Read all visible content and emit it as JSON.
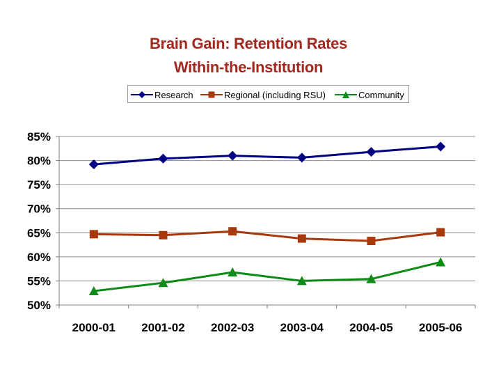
{
  "chart_data": {
    "type": "line",
    "title": [
      "Brain Gain:  Retention Rates",
      "Within-the-Institution"
    ],
    "categories": [
      "2000-01",
      "2001-02",
      "2002-03",
      "2003-04",
      "2004-05",
      "2005-06"
    ],
    "series": [
      {
        "name": "Research",
        "color": "#000080",
        "marker": "diamond",
        "values": [
          79.2,
          80.4,
          81.0,
          80.6,
          81.8,
          82.9
        ]
      },
      {
        "name": "Regional (including RSU)",
        "color": "#a8390c",
        "marker": "square",
        "values": [
          64.7,
          64.5,
          65.3,
          63.8,
          63.3,
          65.1
        ]
      },
      {
        "name": "Community",
        "color": "#0e8a16",
        "marker": "triangle",
        "values": [
          52.9,
          54.6,
          56.8,
          55.0,
          55.4,
          58.9
        ]
      }
    ],
    "yticks": [
      "50%",
      "55%",
      "60%",
      "65%",
      "70%",
      "75%",
      "80%",
      "85%"
    ],
    "ylim": [
      50,
      85
    ],
    "grid": true,
    "legend_position": "top"
  }
}
